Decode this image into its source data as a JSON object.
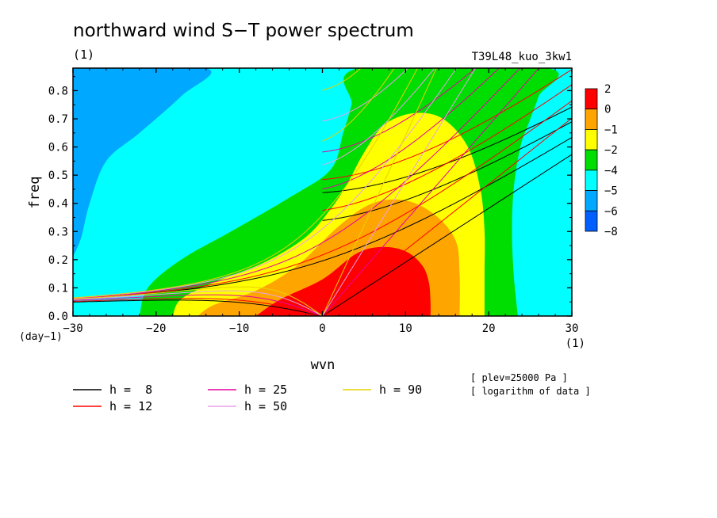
{
  "chart_data": {
    "type": "heatmap",
    "title": "northward wind S−T power spectrum",
    "subtitle": "(1)",
    "run_label": "T39L48_kuo_3kw1",
    "xlabel": "wvn",
    "x_unit": "(1)",
    "ylabel": "freq",
    "y_unit": "(day−1)",
    "xlim": [
      -30,
      30
    ],
    "ylim": [
      0,
      0.88
    ],
    "x_ticks": [
      -30,
      -20,
      -10,
      0,
      10,
      20,
      30
    ],
    "y_ticks": [
      0.0,
      0.1,
      0.2,
      0.3,
      0.4,
      0.5,
      0.6,
      0.7,
      0.8
    ],
    "x_tick_labels": [
      "−30",
      "−20",
      "−10",
      "0",
      "10",
      "20",
      "30"
    ],
    "y_tick_labels": [
      "0.0",
      "0.1",
      "0.2",
      "0.3",
      "0.4",
      "0.5",
      "0.6",
      "0.7",
      "0.8"
    ],
    "colorbar": {
      "levels": [
        2,
        0,
        -1,
        -2,
        -4,
        -5,
        -6,
        -8
      ],
      "level_labels": [
        "2",
        "0",
        "−1",
        "−2",
        "−4",
        "−5",
        "−6",
        "−8"
      ],
      "colors": [
        "#ff0000",
        "#ffa500",
        "#ffff00",
        "#00dd00",
        "#00ffff",
        "#00a8ff",
        "#0060ff"
      ]
    },
    "annotations": [
      "[ plev=25000 Pa ]",
      "[ logarithm of data ]"
    ],
    "dispersion_curves": [
      {
        "label": "h =  8",
        "h": 8,
        "color": "#000000"
      },
      {
        "label": "h = 12",
        "h": 12,
        "color": "#ff0000"
      },
      {
        "label": "h = 25",
        "h": 25,
        "color": "#e600a0"
      },
      {
        "label": "h = 50",
        "h": 50,
        "color": "#e8a0e8"
      },
      {
        "label": "h = 90",
        "h": 90,
        "color": "#e6d200"
      }
    ]
  }
}
